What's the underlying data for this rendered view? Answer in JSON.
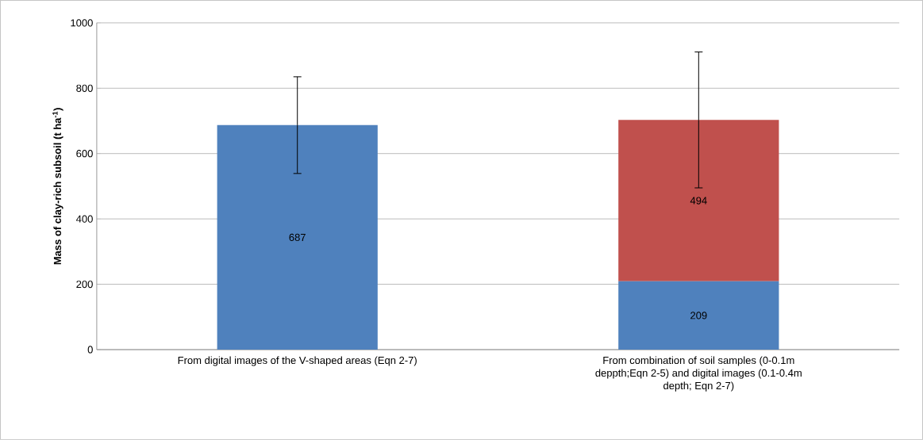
{
  "chart_data": {
    "type": "bar",
    "stacked": true,
    "ylabel": "Mass of clay-rich subsoil (t ha$^{-1}$)",
    "categories": [
      "From digital images of the V-shaped areas (Eqn 2-7)",
      "From combination of soil samples (0-0.1m deppth;Eqn 2-5) and digital images (0.1-0.4m depth; Eqn 2-7)"
    ],
    "series": [
      {
        "color": "#4f81bd",
        "values": [
          687,
          209
        ],
        "errors": [
          148,
          null
        ]
      },
      {
        "color": "#c0504d",
        "values": [
          null,
          494
        ],
        "errors": [
          null,
          208
        ]
      }
    ],
    "data_labels": true,
    "ylim": [
      0,
      1000
    ],
    "yticks": [
      0,
      200,
      400,
      600,
      800,
      1000
    ],
    "grid": "y"
  }
}
